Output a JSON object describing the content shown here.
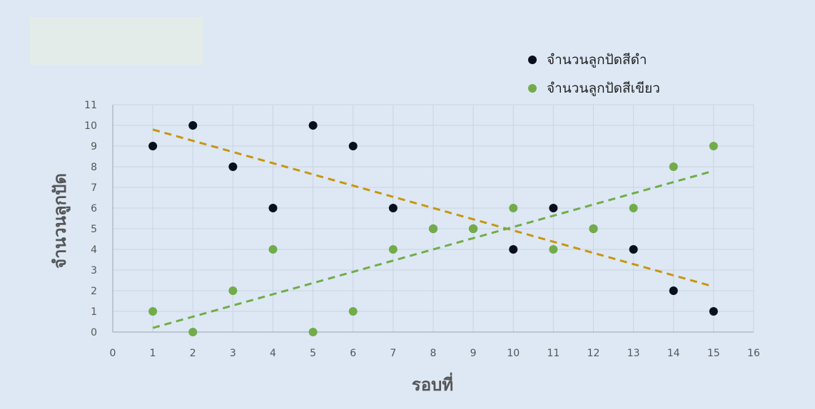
{
  "chart_data": {
    "type": "scatter",
    "xlabel": "รอบที่",
    "ylabel": "จำนวนลูกปัด",
    "xlim": [
      0,
      16
    ],
    "ylim": [
      0,
      11
    ],
    "x_ticks": [
      0,
      1,
      2,
      3,
      4,
      5,
      6,
      7,
      8,
      9,
      10,
      11,
      12,
      13,
      14,
      15,
      16
    ],
    "y_ticks": [
      0,
      1,
      2,
      3,
      4,
      5,
      6,
      7,
      8,
      9,
      10,
      11
    ],
    "grid": true,
    "legend_position": "top-right",
    "series": [
      {
        "name": "จำนวนลูกปัดสีดำ",
        "color": "#0a0f1e",
        "x": [
          1,
          2,
          3,
          4,
          5,
          6,
          7,
          8,
          9,
          10,
          11,
          12,
          13,
          14,
          15
        ],
        "y": [
          9,
          10,
          8,
          6,
          10,
          9,
          6,
          5,
          5,
          4,
          6,
          5,
          4,
          2,
          1
        ],
        "trendline": {
          "from": [
            1,
            9.8
          ],
          "to": [
            15,
            2.2
          ],
          "color": "#c8960e",
          "style": "dashed"
        }
      },
      {
        "name": "จำนวนลูกปัดสีเขียว",
        "color": "#72ac4a",
        "x": [
          1,
          2,
          3,
          4,
          5,
          6,
          7,
          8,
          9,
          10,
          11,
          12,
          13,
          14,
          15
        ],
        "y": [
          1,
          0,
          2,
          4,
          0,
          1,
          4,
          5,
          5,
          6,
          4,
          5,
          6,
          8,
          9
        ],
        "trendline": {
          "from": [
            1,
            0.2
          ],
          "to": [
            15,
            7.8
          ],
          "color": "#72ac4a",
          "style": "dashed"
        }
      }
    ]
  }
}
